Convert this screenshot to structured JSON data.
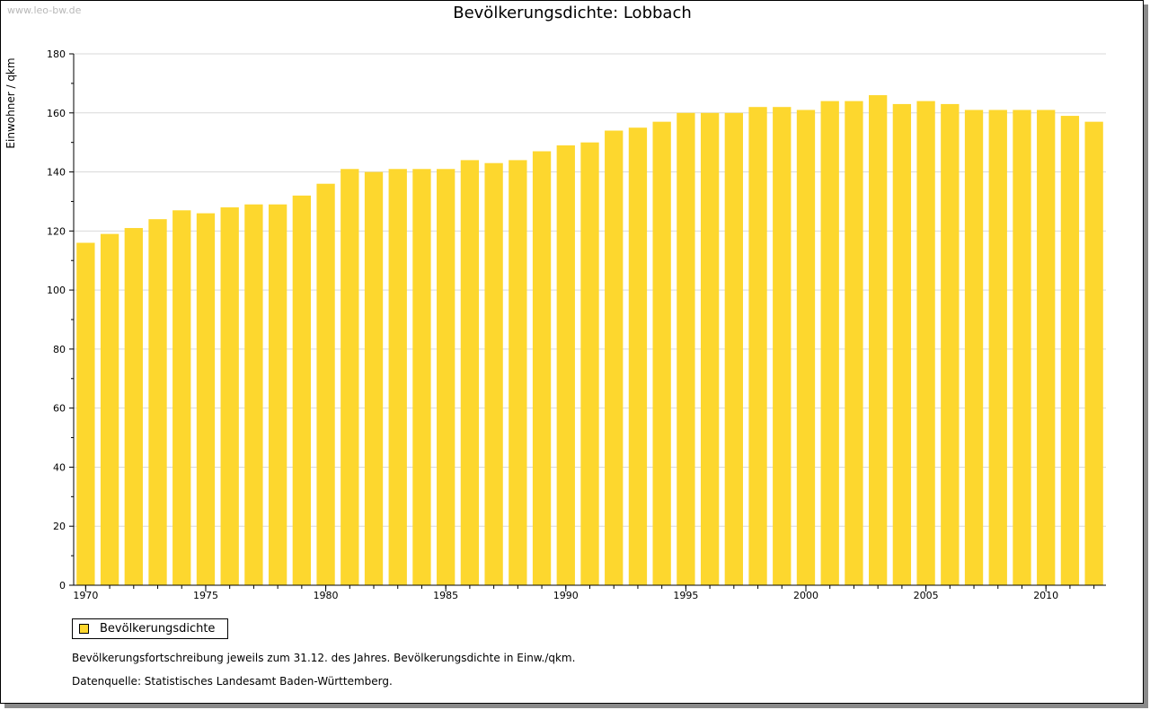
{
  "watermark": "www.leo-bw.de",
  "legend": {
    "label": "Bevölkerungsdichte"
  },
  "notes": [
    "Bevölkerungsfortschreibung jeweils zum 31.12. des Jahres. Bevölkerungsdichte in Einw./qkm.",
    "Datenquelle: Statistisches Landesamt Baden-Württemberg."
  ],
  "colors": {
    "bar": "#fdd72e",
    "grid": "#d9d9d9",
    "axis": "#000000"
  },
  "chart_data": {
    "type": "bar",
    "title": "Bevölkerungsdichte: Lobbach",
    "xlabel": "",
    "ylabel": "Einwohner / qkm",
    "ylim": [
      0,
      180
    ],
    "yticks": [
      0,
      20,
      40,
      60,
      80,
      100,
      120,
      140,
      160,
      180
    ],
    "xticks": [
      "1970",
      "1975",
      "1980",
      "1985",
      "1990",
      "1995",
      "2000",
      "2005",
      "2010"
    ],
    "grid": true,
    "series": [
      {
        "name": "Bevölkerungsdichte",
        "categories": [
          1970,
          1971,
          1972,
          1973,
          1974,
          1975,
          1976,
          1977,
          1978,
          1979,
          1980,
          1981,
          1982,
          1983,
          1984,
          1985,
          1986,
          1987,
          1988,
          1989,
          1990,
          1991,
          1992,
          1993,
          1994,
          1995,
          1996,
          1997,
          1998,
          1999,
          2000,
          2001,
          2002,
          2003,
          2004,
          2005,
          2006,
          2007,
          2008,
          2009,
          2010,
          2011,
          2012
        ],
        "values": [
          116,
          119,
          121,
          124,
          127,
          126,
          128,
          129,
          129,
          132,
          136,
          141,
          140,
          141,
          141,
          141,
          144,
          143,
          144,
          147,
          149,
          150,
          154,
          155,
          157,
          160,
          160,
          160,
          162,
          162,
          161,
          164,
          164,
          166,
          163,
          164,
          163,
          161,
          161,
          161,
          161,
          159,
          157
        ]
      }
    ]
  }
}
